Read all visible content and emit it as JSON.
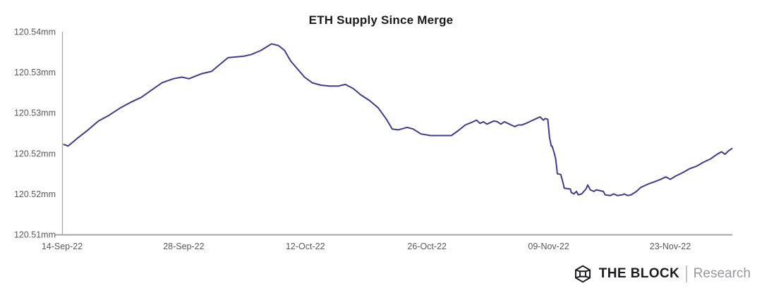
{
  "chart_data": {
    "type": "line",
    "title": "ETH Supply Since Merge",
    "series_name": "ETH Supply",
    "unit": "mm",
    "line_color": "#403c8c",
    "axis_color": "#a6a6a6",
    "tick_label_color": "#595959",
    "grid": false,
    "legend": false,
    "y_axis": {
      "min": 120.515,
      "max": 120.54,
      "ticks": [
        {
          "label": "120.54mm",
          "value": 120.54
        },
        {
          "label": "120.53mm",
          "value": 120.535
        },
        {
          "label": "120.53mm",
          "value": 120.53
        },
        {
          "label": "120.52mm",
          "value": 120.525
        },
        {
          "label": "120.52mm",
          "value": 120.52
        },
        {
          "label": "120.51mm",
          "value": 120.515
        }
      ]
    },
    "x_axis": {
      "start_date": "14-Sep-22",
      "ticks": [
        {
          "label": "14-Sep-22",
          "day": 0
        },
        {
          "label": "28-Sep-22",
          "day": 14
        },
        {
          "label": "12-Oct-22",
          "day": 28
        },
        {
          "label": "26-Oct-22",
          "day": 42
        },
        {
          "label": "09-Nov-22",
          "day": 56
        },
        {
          "label": "23-Nov-22",
          "day": 70
        }
      ]
    },
    "points": [
      [
        0.2,
        120.5261
      ],
      [
        0.7,
        120.5259
      ],
      [
        1.8,
        120.5269
      ],
      [
        3.0,
        120.5279
      ],
      [
        4.2,
        120.529
      ],
      [
        5.4,
        120.5297
      ],
      [
        6.7,
        120.5306
      ],
      [
        7.9,
        120.5313
      ],
      [
        9.1,
        120.5319
      ],
      [
        10.3,
        120.5328
      ],
      [
        11.5,
        120.5337
      ],
      [
        12.8,
        120.5342
      ],
      [
        13.8,
        120.5344
      ],
      [
        14.6,
        120.5342
      ],
      [
        16.0,
        120.5348
      ],
      [
        17.2,
        120.5351
      ],
      [
        18.2,
        120.536
      ],
      [
        19.1,
        120.5368
      ],
      [
        20.1,
        120.5369
      ],
      [
        21.0,
        120.537
      ],
      [
        21.8,
        120.5372
      ],
      [
        22.9,
        120.5377
      ],
      [
        24.1,
        120.5385
      ],
      [
        24.9,
        120.5383
      ],
      [
        25.6,
        120.5377
      ],
      [
        26.3,
        120.5364
      ],
      [
        27.1,
        120.5354
      ],
      [
        27.9,
        120.5344
      ],
      [
        28.8,
        120.5337
      ],
      [
        29.8,
        120.5334
      ],
      [
        30.8,
        120.5333
      ],
      [
        31.8,
        120.5333
      ],
      [
        32.6,
        120.5335
      ],
      [
        33.5,
        120.533
      ],
      [
        34.4,
        120.5322
      ],
      [
        35.4,
        120.5315
      ],
      [
        36.4,
        120.5306
      ],
      [
        37.4,
        120.5291
      ],
      [
        38.0,
        120.528
      ],
      [
        38.7,
        120.5279
      ],
      [
        39.7,
        120.5282
      ],
      [
        40.4,
        120.528
      ],
      [
        41.3,
        120.5274
      ],
      [
        42.4,
        120.5272
      ],
      [
        44.8,
        120.5272
      ],
      [
        45.6,
        120.5278
      ],
      [
        46.4,
        120.5285
      ],
      [
        47.3,
        120.5289
      ],
      [
        47.7,
        120.5291
      ],
      [
        48.1,
        120.5287
      ],
      [
        48.5,
        120.5289
      ],
      [
        48.9,
        120.5286
      ],
      [
        49.7,
        120.529
      ],
      [
        50.1,
        120.5289
      ],
      [
        50.5,
        120.5286
      ],
      [
        50.9,
        120.5289
      ],
      [
        51.3,
        120.5287
      ],
      [
        51.7,
        120.5285
      ],
      [
        52.1,
        120.5283
      ],
      [
        52.5,
        120.5285
      ],
      [
        52.9,
        120.5285
      ],
      [
        53.4,
        120.5287
      ],
      [
        53.8,
        120.5289
      ],
      [
        54.2,
        120.5291
      ],
      [
        54.6,
        120.5293
      ],
      [
        55.0,
        120.5295
      ],
      [
        55.4,
        120.5291
      ],
      [
        55.6,
        120.5293
      ],
      [
        55.9,
        120.5292
      ],
      [
        56.1,
        120.527
      ],
      [
        56.3,
        120.5259
      ],
      [
        56.4,
        120.5259
      ],
      [
        56.6,
        120.5252
      ],
      [
        56.8,
        120.5244
      ],
      [
        56.9,
        120.5235
      ],
      [
        57.0,
        120.5225
      ],
      [
        57.4,
        120.5224
      ],
      [
        57.6,
        120.5216
      ],
      [
        57.7,
        120.5212
      ],
      [
        57.8,
        120.5207
      ],
      [
        58.5,
        120.5206
      ],
      [
        58.6,
        120.5202
      ],
      [
        58.9,
        120.52
      ],
      [
        59.2,
        120.5203
      ],
      [
        59.4,
        120.5199
      ],
      [
        59.8,
        120.52
      ],
      [
        60.3,
        120.5206
      ],
      [
        60.5,
        120.5211
      ],
      [
        60.8,
        120.5205
      ],
      [
        61.2,
        120.5203
      ],
      [
        61.5,
        120.5205
      ],
      [
        62.3,
        120.5203
      ],
      [
        62.5,
        120.5199
      ],
      [
        63.1,
        120.5198
      ],
      [
        63.5,
        120.52
      ],
      [
        63.9,
        120.5198
      ],
      [
        64.5,
        120.5199
      ],
      [
        64.7,
        120.52
      ],
      [
        65.1,
        120.5198
      ],
      [
        65.5,
        120.5199
      ],
      [
        66.1,
        120.5203
      ],
      [
        66.6,
        120.5208
      ],
      [
        67.4,
        120.5212
      ],
      [
        68.2,
        120.5215
      ],
      [
        68.9,
        120.5218
      ],
      [
        69.5,
        120.5221
      ],
      [
        70.0,
        120.5218
      ],
      [
        70.6,
        120.5222
      ],
      [
        71.4,
        120.5226
      ],
      [
        72.2,
        120.5231
      ],
      [
        73.0,
        120.5234
      ],
      [
        73.8,
        120.5239
      ],
      [
        74.6,
        120.5243
      ],
      [
        75.4,
        120.5249
      ],
      [
        75.9,
        120.5252
      ],
      [
        76.3,
        120.5249
      ],
      [
        76.7,
        120.5253
      ],
      [
        77.1,
        120.5256
      ]
    ]
  },
  "footer": {
    "brand": "THE BLOCK",
    "suffix": "Research"
  }
}
